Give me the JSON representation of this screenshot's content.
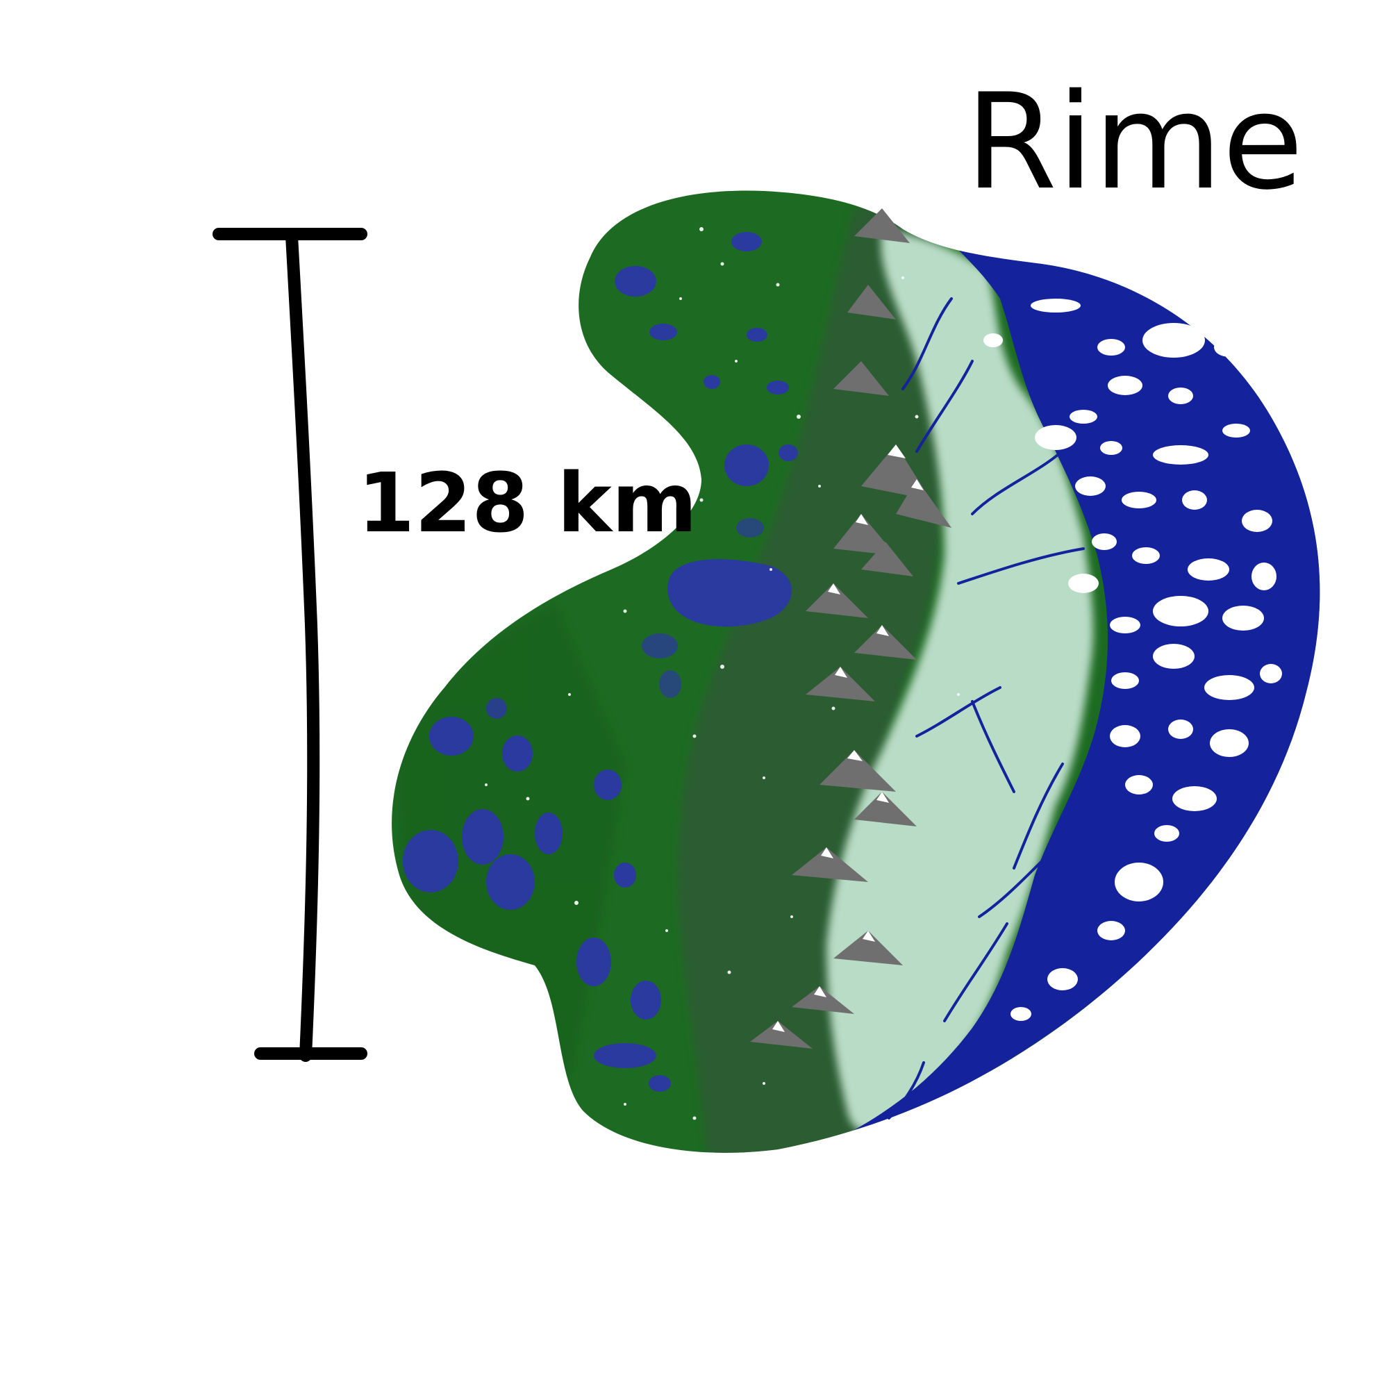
{
  "map": {
    "title": "Rime",
    "scale_label": "128 km",
    "colors": {
      "background": "#ffffff",
      "land": "#1d6b22",
      "land_dark": "#0f4f14",
      "snow_plain": "#b9dcc6",
      "ice_water": "#14229c",
      "ice_floe": "#ffffff",
      "mountain": "#6f6f6f",
      "lake": "#2b3a9e",
      "ink": "#000000"
    }
  }
}
